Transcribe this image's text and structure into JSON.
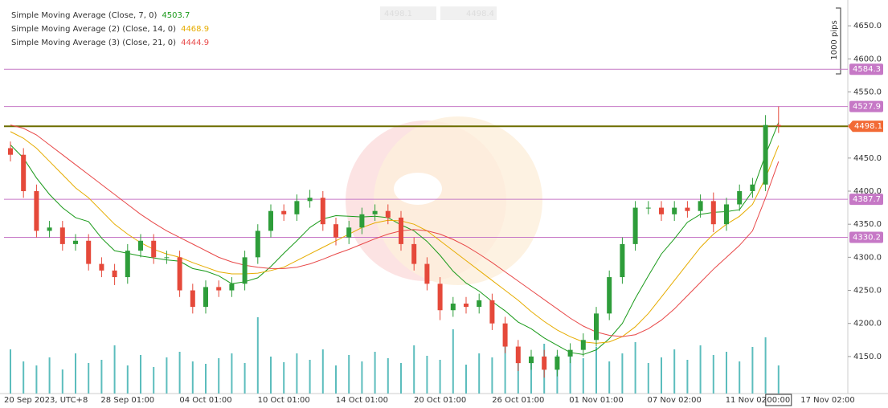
{
  "chart_data": {
    "type": "candlestick",
    "legend": [
      {
        "series": 0
      },
      {
        "series": 1
      },
      {
        "series": 2
      }
    ],
    "categories": [
      "20 Sep 2023, UTC+8",
      null,
      null,
      null,
      null,
      null,
      null,
      null,
      null,
      "28 Sep 01:00",
      null,
      null,
      null,
      null,
      null,
      "04 Oct 01:00",
      null,
      null,
      null,
      null,
      null,
      "10 Oct 01:00",
      null,
      null,
      null,
      null,
      null,
      "14 Oct 01:00",
      null,
      null,
      null,
      null,
      null,
      "20 Oct 01:00",
      null,
      null,
      null,
      null,
      null,
      "26 Oct 01:00",
      null,
      null,
      null,
      null,
      null,
      "01 Nov 01:00",
      null,
      null,
      null,
      null,
      null,
      "07 Nov 02:00",
      null,
      null,
      null,
      null,
      null,
      "11 Nov 02:00",
      null,
      "00:00"
    ],
    "x_extra_label": "17 Nov 02:00",
    "open": [
      4465,
      4455,
      4400,
      4340,
      4345,
      4320,
      4325,
      4290,
      4280,
      4270,
      4310,
      4325,
      4300,
      4300,
      4250,
      4225,
      4255,
      4250,
      4260,
      4300,
      4340,
      4370,
      4365,
      4385,
      4390,
      4350,
      4330,
      4345,
      4365,
      4370,
      4360,
      4320,
      4290,
      4260,
      4220,
      4230,
      4225,
      4235,
      4200,
      4165,
      4140,
      4150,
      4130,
      4150,
      4160,
      4175,
      4215,
      4270,
      4320,
      4375,
      4375,
      4365,
      4375,
      4370,
      4385,
      4350,
      4380,
      4400,
      4410,
      4500
    ],
    "high": [
      4475,
      4465,
      4410,
      4355,
      4355,
      4335,
      4335,
      4300,
      4290,
      4320,
      4335,
      4335,
      4310,
      4310,
      4260,
      4265,
      4265,
      4270,
      4310,
      4350,
      4380,
      4380,
      4395,
      4402,
      4400,
      4360,
      4355,
      4375,
      4380,
      4380,
      4370,
      4330,
      4300,
      4270,
      4240,
      4240,
      4245,
      4245,
      4210,
      4175,
      4160,
      4160,
      4160,
      4170,
      4185,
      4225,
      4280,
      4330,
      4385,
      4385,
      4385,
      4385,
      4385,
      4395,
      4398,
      4390,
      4410,
      4420,
      4515,
      4528
    ],
    "low": [
      4445,
      4390,
      4330,
      4330,
      4310,
      4310,
      4280,
      4270,
      4258,
      4260,
      4300,
      4290,
      4290,
      4240,
      4215,
      4215,
      4240,
      4240,
      4250,
      4290,
      4330,
      4355,
      4355,
      4375,
      4340,
      4318,
      4320,
      4335,
      4355,
      4350,
      4310,
      4280,
      4250,
      4205,
      4210,
      4215,
      4215,
      4190,
      4155,
      4128,
      4130,
      4118,
      4120,
      4140,
      4150,
      4165,
      4205,
      4260,
      4310,
      4365,
      4355,
      4355,
      4360,
      4360,
      4338,
      4340,
      4370,
      4390,
      4400,
      4488
    ],
    "close": [
      4455,
      4400,
      4340,
      4345,
      4320,
      4325,
      4290,
      4280,
      4270,
      4310,
      4325,
      4300,
      4300,
      4250,
      4225,
      4255,
      4250,
      4260,
      4300,
      4340,
      4370,
      4365,
      4385,
      4390,
      4350,
      4330,
      4345,
      4365,
      4370,
      4360,
      4320,
      4290,
      4260,
      4220,
      4230,
      4225,
      4235,
      4200,
      4165,
      4140,
      4150,
      4130,
      4150,
      4160,
      4175,
      4215,
      4270,
      4320,
      4375,
      4375,
      4365,
      4375,
      4370,
      4385,
      4350,
      4380,
      4400,
      4410,
      4500,
      4498.1
    ],
    "volume": [
      55,
      40,
      35,
      45,
      30,
      50,
      38,
      42,
      60,
      35,
      48,
      33,
      45,
      52,
      40,
      37,
      44,
      50,
      38,
      95,
      46,
      39,
      50,
      42,
      55,
      35,
      48,
      40,
      52,
      44,
      38,
      60,
      47,
      42,
      80,
      36,
      50,
      45,
      78,
      55,
      40,
      62,
      48,
      53,
      44,
      58,
      40,
      50,
      64,
      38,
      45,
      55,
      42,
      60,
      48,
      52,
      40,
      58,
      70,
      35
    ],
    "up_color": "#2e9d3a",
    "down_color": "#e5493a",
    "volume_color": "#5cbdbd",
    "series": [
      {
        "name": "Simple Moving Average (Close, 7, 0)",
        "color": "#1a9a1a",
        "values": [
          4470,
          4450,
          4420,
          4395,
          4375,
          4360,
          4354,
          4329,
          4310,
          4306,
          4302,
          4299,
          4296,
          4294,
          4283,
          4279,
          4272,
          4260,
          4263,
          4269,
          4286,
          4306,
          4325,
          4345,
          4358,
          4363,
          4362,
          4361,
          4362,
          4360,
          4349,
          4340,
          4324,
          4303,
          4279,
          4261,
          4249,
          4233,
          4219,
          4202,
          4192,
          4178,
          4167,
          4156,
          4153,
          4160,
          4177,
          4200,
          4238,
          4272,
          4305,
          4328,
          4353,
          4365,
          4368,
          4369,
          4372,
          4400,
          4455,
          4503.7
        ]
      },
      {
        "name": "Simple Moving Average (2) (Close, 14, 0)",
        "color": "#e6ac00",
        "values": [
          4490,
          4480,
          4465,
          4445,
          4425,
          4405,
          4390,
          4370,
          4350,
          4335,
          4322,
          4312,
          4305,
          4300,
          4292,
          4285,
          4278,
          4275,
          4275,
          4276,
          4280,
          4285,
          4295,
          4305,
          4315,
          4325,
          4335,
          4345,
          4352,
          4356,
          4355,
          4350,
          4340,
          4325,
          4310,
          4295,
          4280,
          4265,
          4250,
          4235,
          4218,
          4203,
          4190,
          4180,
          4172,
          4170,
          4172,
          4180,
          4195,
          4215,
          4240,
          4265,
          4290,
          4315,
          4335,
          4350,
          4362,
          4380,
          4420,
          4468.9
        ]
      },
      {
        "name": "Simple Moving Average (3) (Close, 21, 0)",
        "color": "#e84848",
        "values": [
          4500,
          4495,
          4485,
          4470,
          4455,
          4440,
          4425,
          4410,
          4395,
          4380,
          4365,
          4352,
          4340,
          4330,
          4320,
          4310,
          4300,
          4293,
          4288,
          4285,
          4283,
          4283,
          4285,
          4290,
          4297,
          4305,
          4312,
          4320,
          4328,
          4335,
          4340,
          4342,
          4340,
          4335,
          4327,
          4317,
          4305,
          4292,
          4278,
          4264,
          4250,
          4236,
          4222,
          4208,
          4196,
          4187,
          4182,
          4180,
          4183,
          4192,
          4205,
          4222,
          4242,
          4262,
          4282,
          4300,
          4318,
          4340,
          4390,
          4444.9
        ]
      }
    ],
    "levels": [
      {
        "value": 4584.3,
        "color": "#c678c6"
      },
      {
        "value": 4527.9,
        "color": "#c678c6"
      },
      {
        "value": 4387.7,
        "color": "#c678c6"
      },
      {
        "value": 4330.2,
        "color": "#c678c6"
      }
    ],
    "current_price": {
      "value": 4498.1,
      "line_color": "#6d6d00",
      "label_color": "#f26a35"
    },
    "toolbar": {
      "sell": 4498.1,
      "buy": 4498.4
    },
    "ruler_label": "1000 pips",
    "ylim": [
      4094,
      4689
    ],
    "yticks": [
      {
        "value": 4150,
        "label": "4150.0"
      },
      {
        "value": 4200,
        "label": "4200.0"
      },
      {
        "value": 4250,
        "label": "4250.0"
      },
      {
        "value": 4300,
        "label": "4300.0"
      },
      {
        "value": 4350,
        "label": "4350.0"
      },
      {
        "value": 4400,
        "label": "4400.0"
      },
      {
        "value": 4450,
        "label": "4450.0"
      },
      {
        "value": 4500,
        "label": "4500.0"
      },
      {
        "value": 4550,
        "label": "4550.0"
      },
      {
        "value": 4600,
        "label": "4600.0"
      },
      {
        "value": 4650,
        "label": "4650.0"
      }
    ]
  }
}
